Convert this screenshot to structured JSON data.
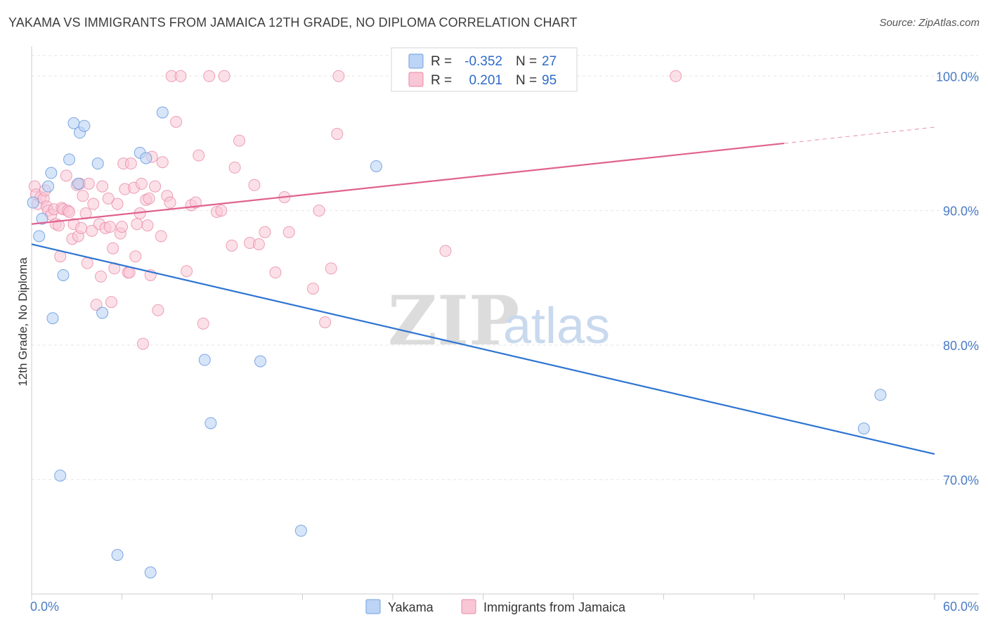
{
  "header": {
    "title": "YAKAMA VS IMMIGRANTS FROM JAMAICA 12TH GRADE, NO DIPLOMA CORRELATION CHART",
    "source": "Source: ZipAtlas.com"
  },
  "legend_box": {
    "rows": [
      {
        "r_label": "R =",
        "r_value": "-0.352",
        "n_label": "N =",
        "n_value": "27"
      },
      {
        "r_label": "R =",
        "r_value": "0.201",
        "n_label": "N =",
        "n_value": "95"
      }
    ]
  },
  "watermark": {
    "zip": "ZIP",
    "atlas": "atlas"
  },
  "chart_data": {
    "type": "scatter",
    "title": "YAKAMA VS IMMIGRANTS FROM JAMAICA 12TH GRADE, NO DIPLOMA CORRELATION CHART",
    "ylabel": "12th Grade, No Diploma",
    "xlim": [
      0,
      60
    ],
    "ylim": [
      61.5,
      102.0
    ],
    "x_tick_labels": [
      "0.0%",
      "60.0%"
    ],
    "y_ticks": [
      70,
      80,
      90,
      100
    ],
    "y_tick_labels": [
      "70.0%",
      "80.0%",
      "90.0%",
      "100.0%"
    ],
    "grid": true,
    "colors": {
      "yakama_fill": "#bcd4f5",
      "yakama_edge": "#6f9fe0",
      "yakama_line": "#2d74d2",
      "jamaica_fill": "#f9c6d6",
      "jamaica_edge": "#e98aa8",
      "jamaica_line": "#e0628f"
    },
    "series": [
      {
        "name": "Yakama",
        "R": -0.352,
        "N": 27,
        "trend": {
          "x": [
            0,
            60
          ],
          "y": [
            87.5,
            71.9
          ]
        },
        "points": [
          [
            0.1,
            90.6
          ],
          [
            0.5,
            88.1
          ],
          [
            0.7,
            89.4
          ],
          [
            1.1,
            91.8
          ],
          [
            1.3,
            92.8
          ],
          [
            1.4,
            82.0
          ],
          [
            1.9,
            70.3
          ],
          [
            2.1,
            85.2
          ],
          [
            2.5,
            93.8
          ],
          [
            2.8,
            96.5
          ],
          [
            3.2,
            95.8
          ],
          [
            3.5,
            96.3
          ],
          [
            3.1,
            92.0
          ],
          [
            4.4,
            93.5
          ],
          [
            4.7,
            82.4
          ],
          [
            5.7,
            64.4
          ],
          [
            7.2,
            94.3
          ],
          [
            7.6,
            93.9
          ],
          [
            7.9,
            63.1
          ],
          [
            8.7,
            97.3
          ],
          [
            11.5,
            78.9
          ],
          [
            11.9,
            74.2
          ],
          [
            15.2,
            78.8
          ],
          [
            17.9,
            66.2
          ],
          [
            22.9,
            93.3
          ],
          [
            56.4,
            76.3
          ],
          [
            55.3,
            73.8
          ]
        ]
      },
      {
        "name": "Immigrants from Jamaica",
        "R": 0.201,
        "N": 95,
        "trend": {
          "x": [
            0,
            50
          ],
          "y": [
            89.0,
            95.0
          ]
        },
        "trend_dashed": {
          "x": [
            50,
            60
          ],
          "y": [
            95.0,
            96.2
          ]
        },
        "points": [
          [
            0.2,
            91.8
          ],
          [
            0.3,
            91.2
          ],
          [
            0.4,
            90.5
          ],
          [
            0.6,
            91.0
          ],
          [
            0.8,
            90.9
          ],
          [
            0.9,
            91.5
          ],
          [
            1.0,
            90.3
          ],
          [
            1.1,
            90.0
          ],
          [
            1.3,
            89.7
          ],
          [
            1.5,
            90.1
          ],
          [
            1.6,
            89.0
          ],
          [
            1.8,
            88.9
          ],
          [
            1.9,
            86.6
          ],
          [
            2.0,
            90.2
          ],
          [
            2.1,
            90.1
          ],
          [
            2.3,
            92.6
          ],
          [
            2.4,
            90.0
          ],
          [
            2.5,
            89.9
          ],
          [
            2.7,
            87.9
          ],
          [
            2.8,
            89.0
          ],
          [
            3.0,
            91.9
          ],
          [
            3.1,
            88.1
          ],
          [
            3.2,
            92.0
          ],
          [
            3.3,
            88.7
          ],
          [
            3.4,
            91.1
          ],
          [
            3.6,
            89.8
          ],
          [
            3.7,
            86.1
          ],
          [
            3.8,
            92.0
          ],
          [
            4.0,
            88.5
          ],
          [
            4.1,
            90.5
          ],
          [
            4.3,
            83.0
          ],
          [
            4.5,
            89.0
          ],
          [
            4.6,
            85.1
          ],
          [
            4.7,
            91.8
          ],
          [
            4.9,
            88.7
          ],
          [
            5.1,
            90.9
          ],
          [
            5.2,
            88.8
          ],
          [
            5.3,
            83.2
          ],
          [
            5.4,
            87.2
          ],
          [
            5.5,
            85.7
          ],
          [
            5.7,
            90.5
          ],
          [
            5.9,
            88.3
          ],
          [
            6.0,
            88.8
          ],
          [
            6.1,
            93.5
          ],
          [
            6.2,
            91.6
          ],
          [
            6.4,
            85.4
          ],
          [
            6.5,
            85.4
          ],
          [
            6.6,
            93.5
          ],
          [
            6.8,
            91.7
          ],
          [
            6.9,
            86.6
          ],
          [
            7.0,
            89.0
          ],
          [
            7.2,
            89.8
          ],
          [
            7.3,
            92.0
          ],
          [
            7.4,
            80.1
          ],
          [
            7.6,
            90.8
          ],
          [
            7.7,
            88.9
          ],
          [
            7.8,
            90.9
          ],
          [
            7.9,
            85.2
          ],
          [
            8.0,
            94.0
          ],
          [
            8.2,
            91.8
          ],
          [
            8.4,
            82.6
          ],
          [
            8.6,
            88.1
          ],
          [
            8.7,
            93.6
          ],
          [
            9.0,
            91.1
          ],
          [
            9.2,
            90.6
          ],
          [
            9.3,
            100.0
          ],
          [
            9.6,
            96.6
          ],
          [
            9.9,
            100.0
          ],
          [
            10.3,
            85.5
          ],
          [
            10.6,
            90.4
          ],
          [
            10.9,
            90.6
          ],
          [
            11.1,
            94.1
          ],
          [
            11.4,
            81.6
          ],
          [
            11.8,
            100.0
          ],
          [
            12.3,
            89.9
          ],
          [
            12.6,
            90.0
          ],
          [
            12.8,
            100.0
          ],
          [
            13.3,
            87.4
          ],
          [
            13.5,
            93.2
          ],
          [
            13.8,
            95.2
          ],
          [
            14.5,
            87.6
          ],
          [
            14.8,
            91.9
          ],
          [
            15.1,
            87.5
          ],
          [
            15.5,
            88.4
          ],
          [
            16.2,
            85.4
          ],
          [
            16.8,
            91.0
          ],
          [
            17.1,
            88.4
          ],
          [
            18.7,
            84.2
          ],
          [
            19.1,
            90.0
          ],
          [
            19.5,
            81.7
          ],
          [
            19.9,
            85.7
          ],
          [
            20.3,
            95.7
          ],
          [
            20.4,
            100.0
          ],
          [
            27.5,
            87.0
          ],
          [
            42.8,
            100.0
          ]
        ]
      }
    ]
  },
  "bottom_legend": {
    "items": [
      {
        "label": "Yakama"
      },
      {
        "label": "Immigrants from Jamaica"
      }
    ]
  }
}
